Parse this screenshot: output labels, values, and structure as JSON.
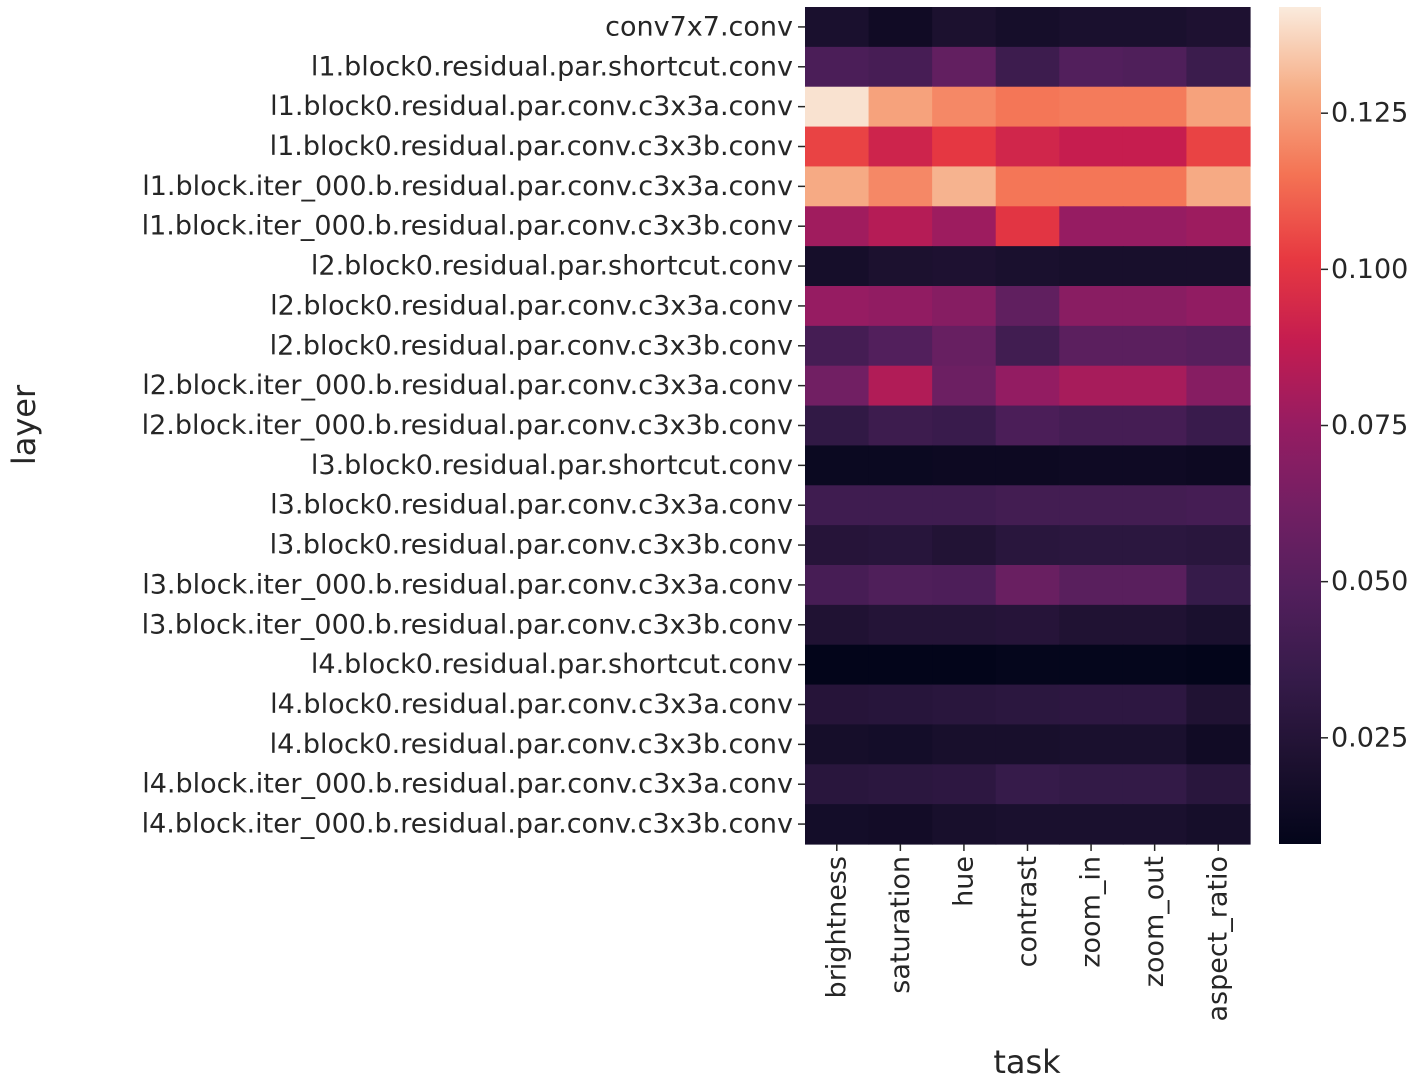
{
  "chart_data": {
    "type": "heatmap",
    "xlabel": "task",
    "ylabel": "layer",
    "x": [
      "brightness",
      "saturation",
      "hue",
      "contrast",
      "zoom_in",
      "zoom_out",
      "aspect_ratio"
    ],
    "y": [
      "conv7x7.conv",
      "l1.block0.residual.par.shortcut.conv",
      "l1.block0.residual.par.conv.c3x3a.conv",
      "l1.block0.residual.par.conv.c3x3b.conv",
      "l1.block.iter_000.b.residual.par.conv.c3x3a.conv",
      "l1.block.iter_000.b.residual.par.conv.c3x3b.conv",
      "l2.block0.residual.par.shortcut.conv",
      "l2.block0.residual.par.conv.c3x3a.conv",
      "l2.block0.residual.par.conv.c3x3b.conv",
      "l2.block.iter_000.b.residual.par.conv.c3x3a.conv",
      "l2.block.iter_000.b.residual.par.conv.c3x3b.conv",
      "l3.block0.residual.par.shortcut.conv",
      "l3.block0.residual.par.conv.c3x3a.conv",
      "l3.block0.residual.par.conv.c3x3b.conv",
      "l3.block.iter_000.b.residual.par.conv.c3x3a.conv",
      "l3.block.iter_000.b.residual.par.conv.c3x3b.conv",
      "l4.block0.residual.par.shortcut.conv",
      "l4.block0.residual.par.conv.c3x3a.conv",
      "l4.block0.residual.par.conv.c3x3b.conv",
      "l4.block.iter_000.b.residual.par.conv.c3x3a.conv",
      "l4.block.iter_000.b.residual.par.conv.c3x3b.conv"
    ],
    "values": [
      [
        0.02,
        0.015,
        0.021,
        0.018,
        0.02,
        0.02,
        0.022
      ],
      [
        0.045,
        0.043,
        0.055,
        0.038,
        0.048,
        0.047,
        0.037
      ],
      [
        0.14,
        0.126,
        0.12,
        0.116,
        0.117,
        0.117,
        0.126
      ],
      [
        0.104,
        0.092,
        0.101,
        0.093,
        0.089,
        0.089,
        0.104
      ],
      [
        0.128,
        0.12,
        0.13,
        0.116,
        0.116,
        0.116,
        0.128
      ],
      [
        0.078,
        0.084,
        0.077,
        0.1,
        0.075,
        0.075,
        0.077
      ],
      [
        0.018,
        0.021,
        0.022,
        0.02,
        0.019,
        0.019,
        0.019
      ],
      [
        0.075,
        0.073,
        0.069,
        0.054,
        0.07,
        0.07,
        0.073
      ],
      [
        0.042,
        0.048,
        0.057,
        0.04,
        0.052,
        0.052,
        0.05
      ],
      [
        0.061,
        0.083,
        0.059,
        0.074,
        0.08,
        0.08,
        0.069
      ],
      [
        0.032,
        0.038,
        0.036,
        0.045,
        0.042,
        0.042,
        0.036
      ],
      [
        0.012,
        0.012,
        0.013,
        0.013,
        0.014,
        0.014,
        0.013
      ],
      [
        0.039,
        0.039,
        0.039,
        0.041,
        0.041,
        0.041,
        0.042
      ],
      [
        0.026,
        0.027,
        0.024,
        0.028,
        0.029,
        0.029,
        0.028
      ],
      [
        0.043,
        0.047,
        0.046,
        0.058,
        0.051,
        0.051,
        0.035
      ],
      [
        0.023,
        0.025,
        0.025,
        0.026,
        0.023,
        0.023,
        0.02
      ],
      [
        0.008,
        0.008,
        0.008,
        0.009,
        0.009,
        0.009,
        0.008
      ],
      [
        0.026,
        0.027,
        0.028,
        0.029,
        0.03,
        0.03,
        0.023
      ],
      [
        0.018,
        0.017,
        0.019,
        0.019,
        0.02,
        0.02,
        0.015
      ],
      [
        0.028,
        0.029,
        0.03,
        0.035,
        0.033,
        0.033,
        0.028
      ],
      [
        0.017,
        0.016,
        0.019,
        0.02,
        0.02,
        0.02,
        0.018
      ]
    ],
    "colorbar": {
      "min": 0.008,
      "max": 0.142,
      "ticks": [
        0.025,
        0.05,
        0.075,
        0.1,
        0.125
      ],
      "tick_labels": [
        "0.025",
        "0.050",
        "0.075",
        "0.100",
        "0.125"
      ],
      "colormap": "rocket"
    },
    "grid": false,
    "legend": "colorbar-right"
  }
}
